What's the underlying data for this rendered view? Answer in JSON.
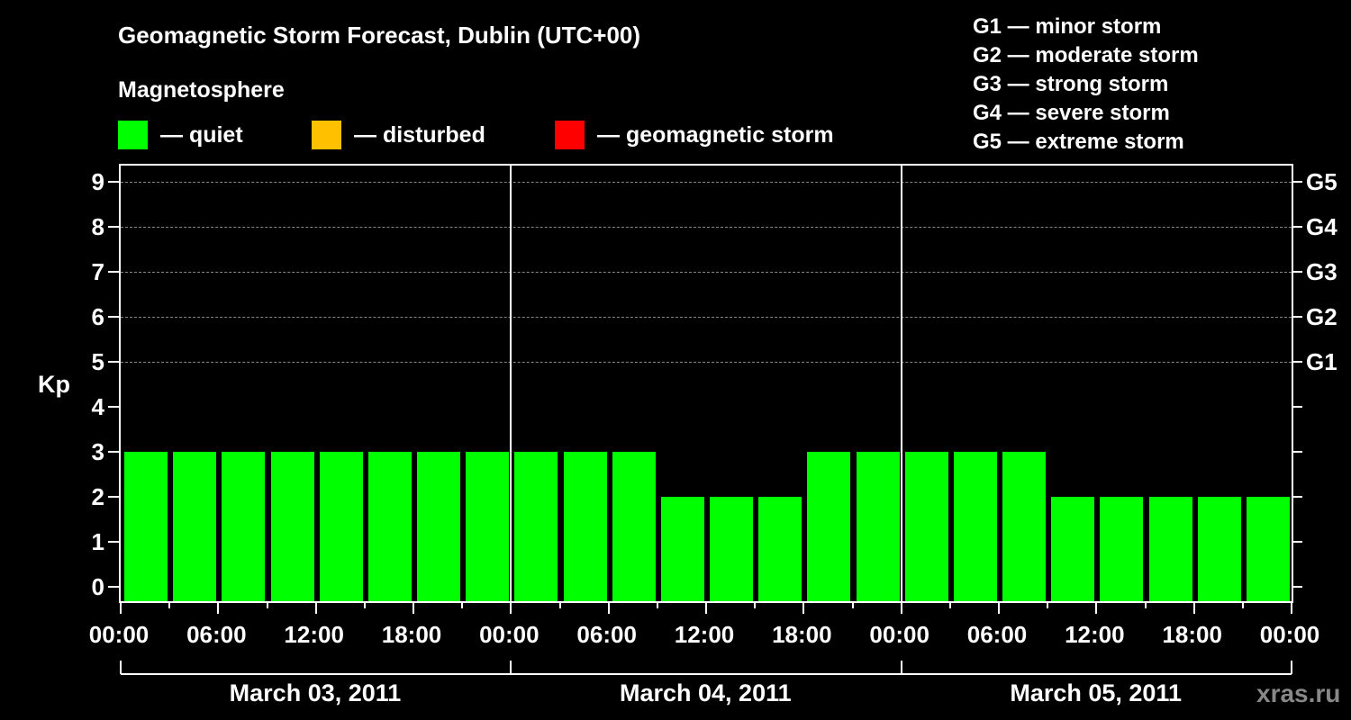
{
  "title": "Geomagnetic Storm Forecast, Dublin (UTC+00)",
  "subtitle": "Magnetosphere",
  "legend": [
    {
      "label": "— quiet",
      "color": "#00ff00"
    },
    {
      "label": "— disturbed",
      "color": "#ffc000"
    },
    {
      "label": "— geomagnetic storm",
      "color": "#ff0000"
    }
  ],
  "g_scale": [
    "G1 — minor storm",
    "G2 — moderate storm",
    "G3 — strong storm",
    "G4 — severe storm",
    "G5 — extreme storm"
  ],
  "watermark": "xras.ru",
  "chart_data": {
    "type": "bar",
    "title": "Geomagnetic Storm Forecast, Dublin (UTC+00)",
    "xlabel": "",
    "ylabel": "Kp",
    "ylim": [
      0,
      9
    ],
    "yticks": [
      "0",
      "1",
      "2",
      "3",
      "4",
      "5",
      "6",
      "7",
      "8",
      "9"
    ],
    "right_axis_labels": [
      {
        "kp": 5,
        "label": "G1"
      },
      {
        "kp": 6,
        "label": "G2"
      },
      {
        "kp": 7,
        "label": "G3"
      },
      {
        "kp": 8,
        "label": "G4"
      },
      {
        "kp": 9,
        "label": "G5"
      }
    ],
    "grid": "dashed horizontal at Kp 5-9",
    "x_tick_labels": [
      "00:00",
      "06:00",
      "12:00",
      "18:00",
      "00:00",
      "06:00",
      "12:00",
      "18:00",
      "00:00",
      "06:00",
      "12:00",
      "18:00",
      "00:00"
    ],
    "days": [
      "March 03, 2011",
      "March 04, 2011",
      "March 05, 2011"
    ],
    "interval_hours": 3,
    "categories": [
      "03 00-03",
      "03 03-06",
      "03 06-09",
      "03 09-12",
      "03 12-15",
      "03 15-18",
      "03 18-21",
      "03 21-24",
      "04 00-03",
      "04 03-06",
      "04 06-09",
      "04 09-12",
      "04 12-15",
      "04 15-18",
      "04 18-21",
      "04 21-24",
      "05 00-03",
      "05 03-06",
      "05 06-09",
      "05 09-12",
      "05 12-15",
      "05 15-18",
      "05 18-21",
      "05 21-24"
    ],
    "values": [
      3,
      3,
      3,
      3,
      3,
      3,
      3,
      3,
      3,
      3,
      3,
      2,
      2,
      2,
      3,
      3,
      3,
      3,
      3,
      2,
      2,
      2,
      2,
      2
    ],
    "status": [
      "quiet",
      "quiet",
      "quiet",
      "quiet",
      "quiet",
      "quiet",
      "quiet",
      "quiet",
      "quiet",
      "quiet",
      "quiet",
      "quiet",
      "quiet",
      "quiet",
      "quiet",
      "quiet",
      "quiet",
      "quiet",
      "quiet",
      "quiet",
      "quiet",
      "quiet",
      "quiet",
      "quiet"
    ],
    "bar_color": "#00ff00"
  }
}
